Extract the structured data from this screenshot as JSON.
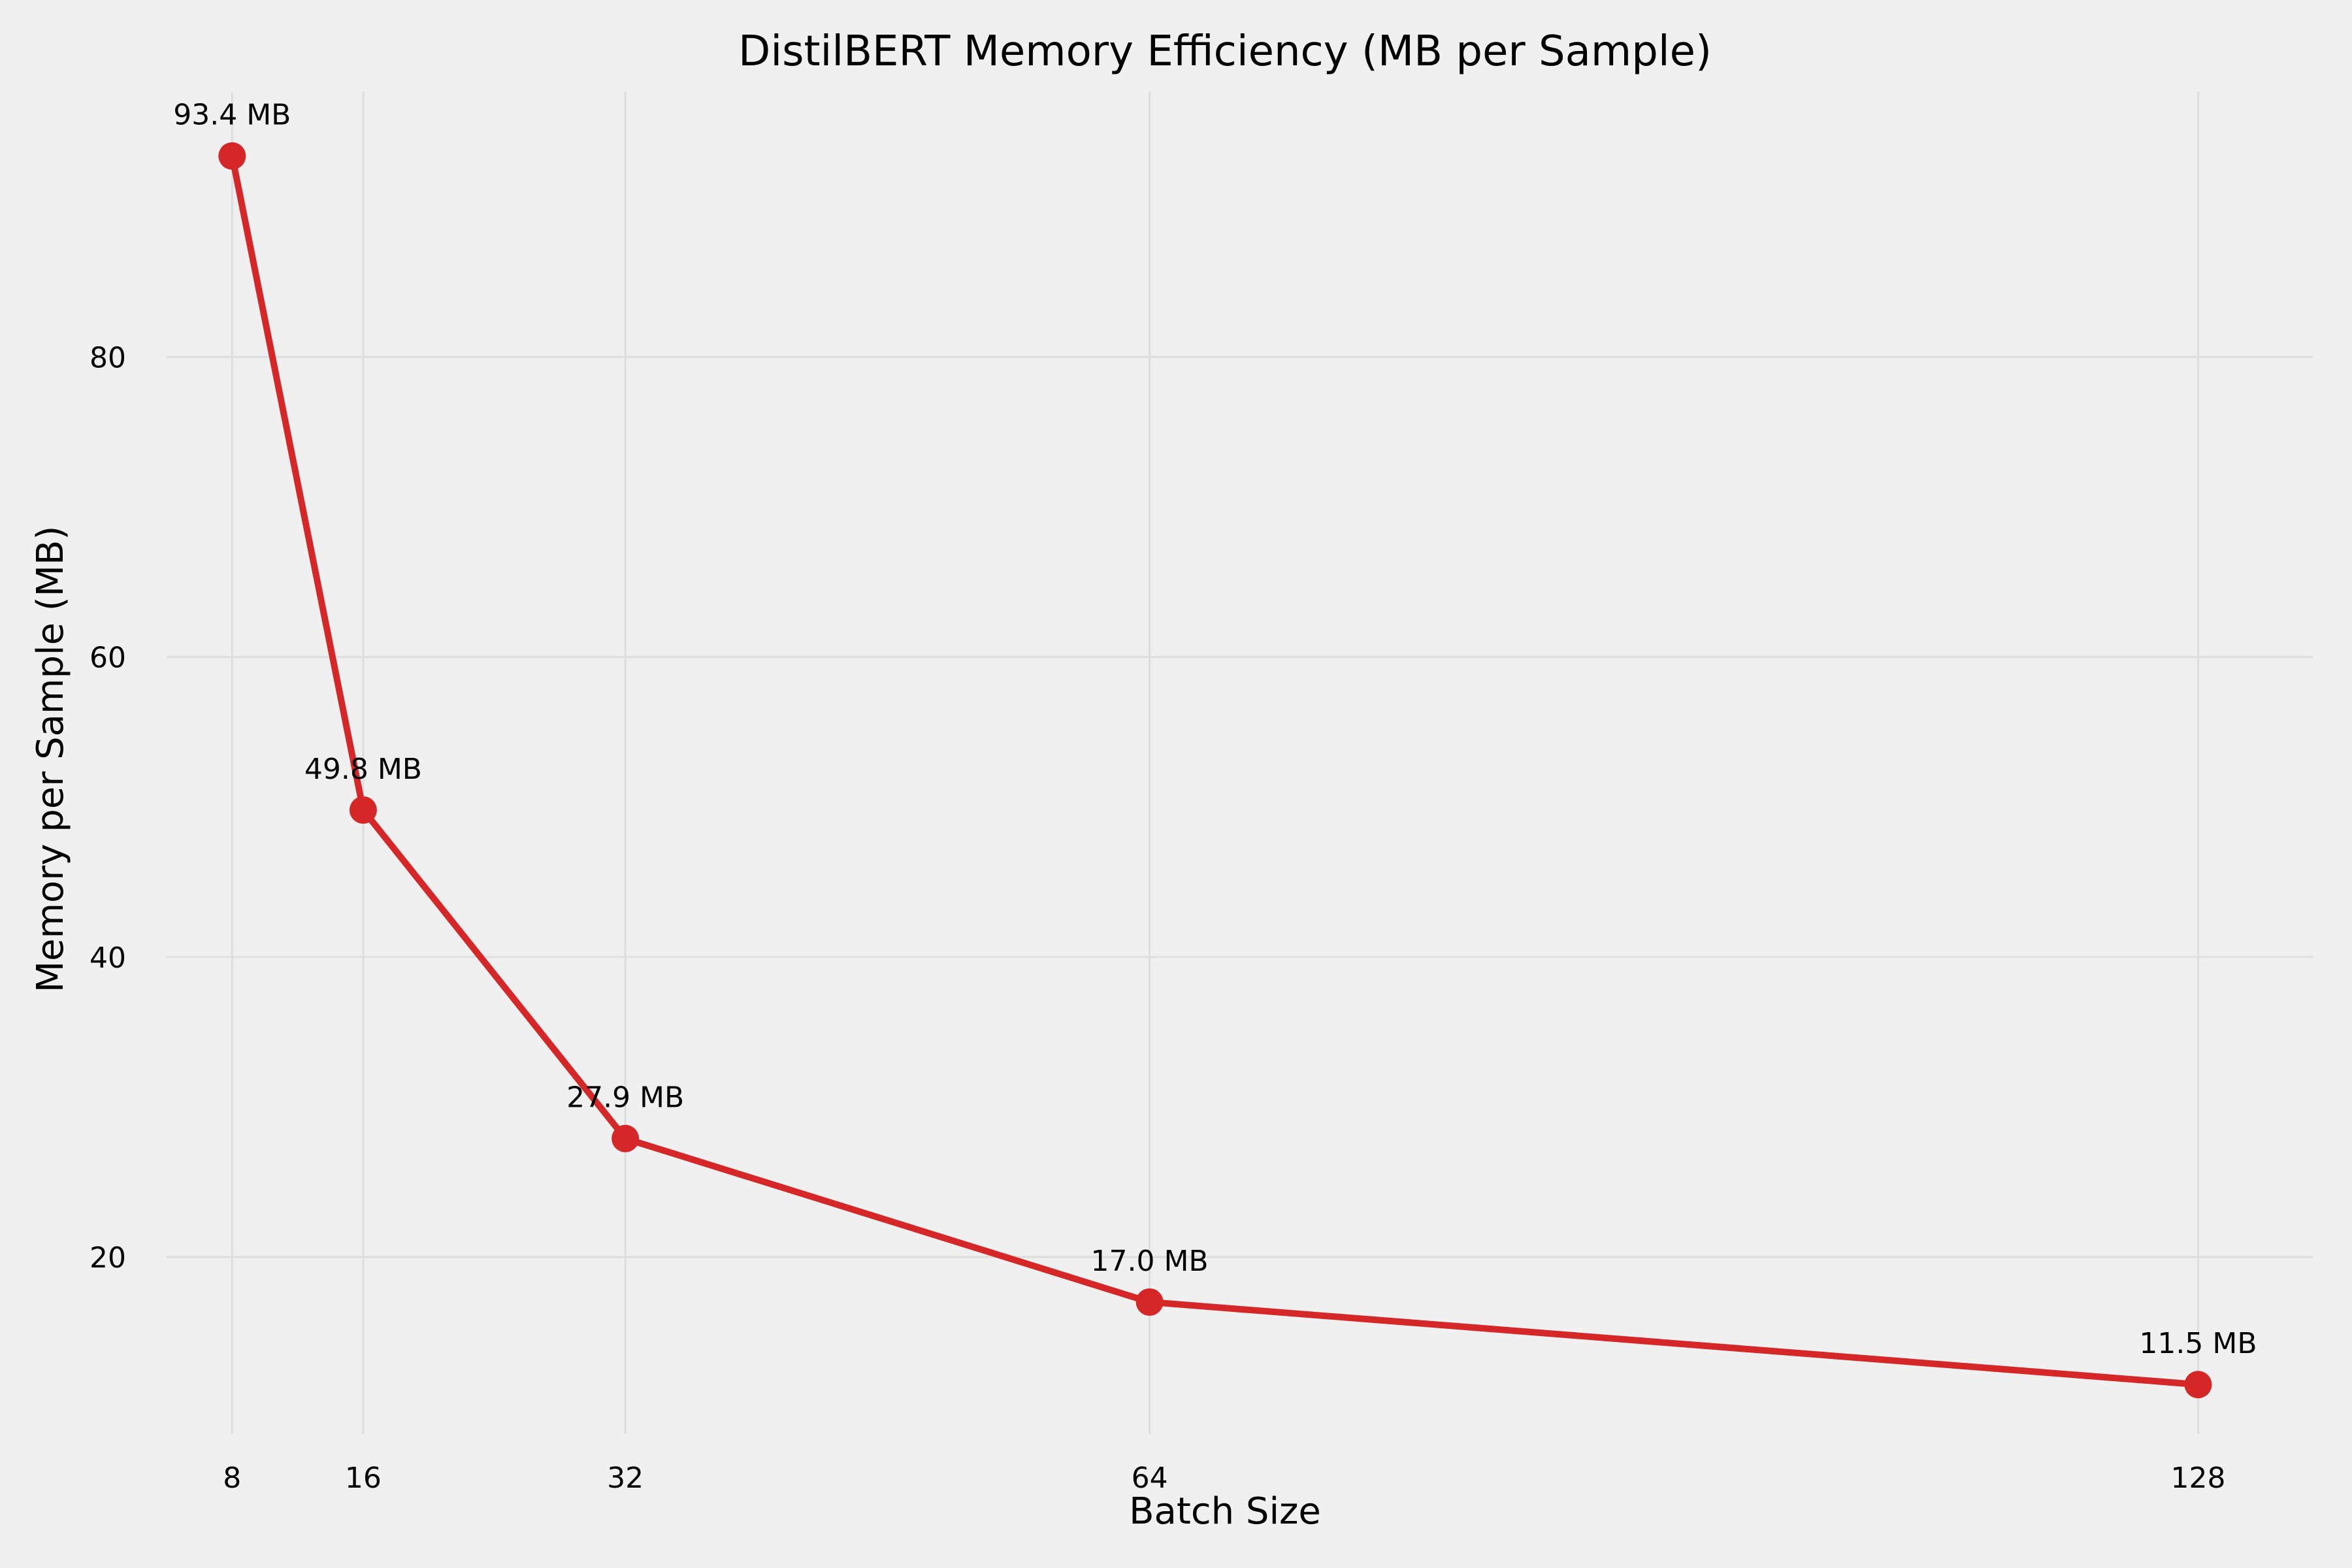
{
  "chart_data": {
    "type": "line",
    "title": "DistilBERT Memory Efficiency (MB per Sample)",
    "xlabel": "Batch Size",
    "ylabel": "Memory per Sample (MB)",
    "x": [
      8,
      16,
      32,
      64,
      128
    ],
    "x_tick_labels": [
      "8",
      "16",
      "32",
      "64",
      "128"
    ],
    "y_ticks": [
      20,
      40,
      60,
      80
    ],
    "y_tick_labels": [
      "20",
      "40",
      "60",
      "80"
    ],
    "xlim": [
      4,
      135
    ],
    "ylim": [
      8.2,
      97.7
    ],
    "series": [
      {
        "values": [
          93.4,
          49.8,
          27.9,
          17.0,
          11.5
        ],
        "data_labels": [
          "93.4 MB",
          "49.8 MB",
          "27.9 MB",
          "17.0 MB",
          "11.5 MB"
        ],
        "color": "#d62728"
      }
    ],
    "grid": true,
    "legend": "none"
  }
}
